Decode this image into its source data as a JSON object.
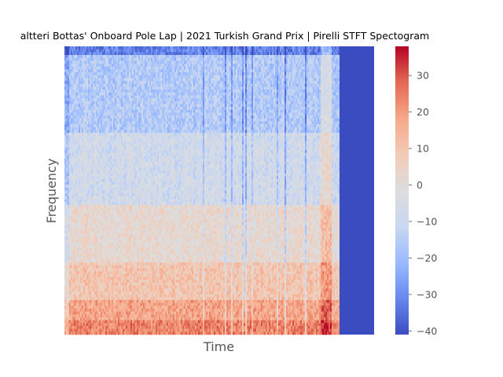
{
  "chart_data": {
    "type": "heatmap",
    "title": "altteri Bottas' Onboard Pole Lap | 2021 Turkish Grand Prix | Pirelli STFT Spectogram",
    "xlabel": "Time",
    "ylabel": "Frequency",
    "colormap": "coolwarm",
    "colorbar": {
      "vmin": -41,
      "vmax": 38,
      "ticks": [
        -40,
        -30,
        -20,
        -10,
        0,
        10,
        20,
        30
      ],
      "tick_labels": [
        "−40",
        "−30",
        "−20",
        "−10",
        "0",
        "10",
        "20",
        "30"
      ]
    },
    "x_ticks_shown": false,
    "y_ticks_shown": false,
    "grid": false,
    "description_values": {
      "empty_region_value": -41,
      "low_frequency_band_value_approx": 20,
      "mid_frequency_value_approx": 0,
      "high_frequency_value_approx": -20
    }
  },
  "colors": {
    "cmap_stops": [
      "#3b4cc0",
      "#6788ee",
      "#9abbff",
      "#c9d7f0",
      "#dddddd",
      "#f2cbb7",
      "#f7a889",
      "#e26952",
      "#b40426"
    ],
    "axis_text": "#555555",
    "title_text": "#000000"
  }
}
